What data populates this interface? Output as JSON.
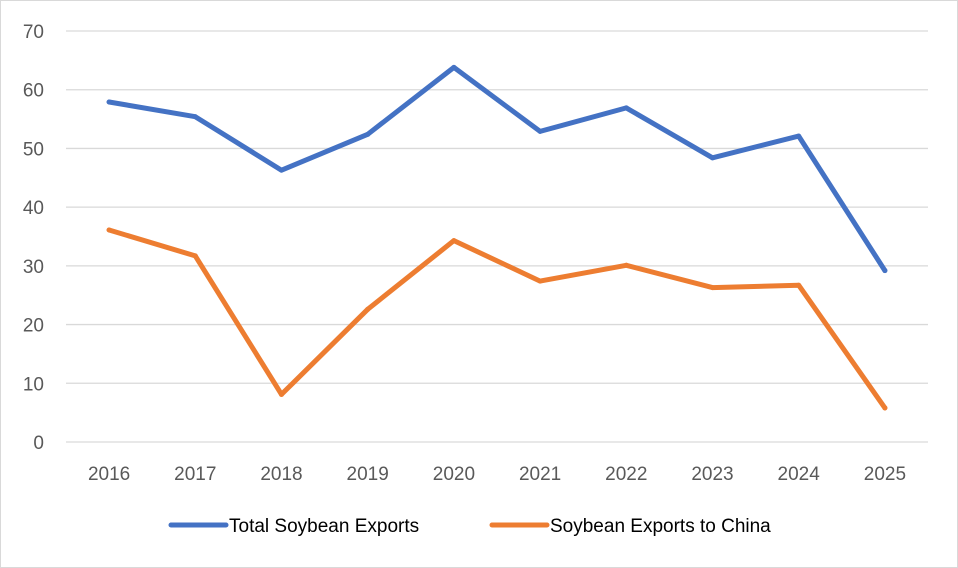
{
  "chart_data": {
    "type": "line",
    "title": "",
    "xlabel": "",
    "ylabel": "",
    "categories": [
      "2016",
      "2017",
      "2018",
      "2019",
      "2020",
      "2021",
      "2022",
      "2023",
      "2024",
      "2025"
    ],
    "ylim": [
      0,
      70
    ],
    "yticks": [
      "0",
      "10",
      "20",
      "30",
      "40",
      "50",
      "60",
      "70"
    ],
    "grid": true,
    "legend": "bottom",
    "series": [
      {
        "name": "Total Soybean Exports",
        "color": "#4472c4",
        "values": [
          57.9,
          55.4,
          46.3,
          52.4,
          63.8,
          52.9,
          56.9,
          48.4,
          52.1,
          29.2
        ]
      },
      {
        "name": "Soybean Exports to China",
        "color": "#ed7d31",
        "values": [
          36.1,
          31.7,
          8.1,
          22.6,
          34.3,
          27.4,
          30.1,
          26.3,
          26.7,
          5.8
        ]
      }
    ]
  }
}
